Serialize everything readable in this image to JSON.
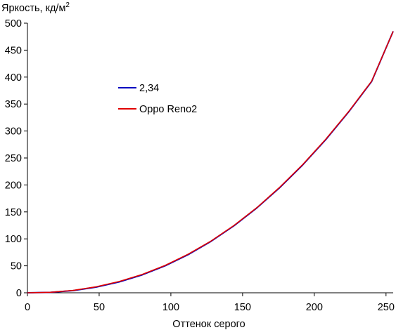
{
  "chart_data": {
    "type": "line",
    "ylabel": "Яркость, кд/м",
    "ylabel_sup": "2",
    "xlabel": "Оттенок серого",
    "xlim": [
      0,
      255
    ],
    "ylim": [
      0,
      500
    ],
    "xticks": [
      0,
      50,
      100,
      150,
      200,
      250
    ],
    "yticks": [
      0,
      50,
      100,
      150,
      200,
      250,
      300,
      350,
      400,
      450,
      500
    ],
    "grid": false,
    "legend_position": "upper-left-center",
    "series": [
      {
        "name": "2,34",
        "color": "#0000c0",
        "x": [
          0,
          16,
          32,
          48,
          64,
          80,
          96,
          112,
          128,
          144,
          160,
          176,
          192,
          208,
          224,
          240,
          255
        ],
        "y": [
          0,
          0.8,
          4.1,
          10.5,
          20.1,
          33.2,
          50.0,
          70.7,
          95.4,
          124.3,
          157.5,
          195.2,
          237.3,
          284.1,
          335.6,
          391.9,
          485.0
        ]
      },
      {
        "name": "Oppo Reno2",
        "color": "#e00000",
        "x": [
          0,
          16,
          32,
          48,
          64,
          80,
          96,
          112,
          128,
          144,
          160,
          176,
          192,
          208,
          224,
          240,
          255
        ],
        "y": [
          0,
          0.9,
          4.5,
          11.2,
          21.0,
          34.0,
          50.8,
          71.5,
          96.0,
          124.8,
          158.0,
          196.0,
          238.0,
          284.8,
          336.2,
          392.5,
          485.0
        ]
      }
    ]
  }
}
